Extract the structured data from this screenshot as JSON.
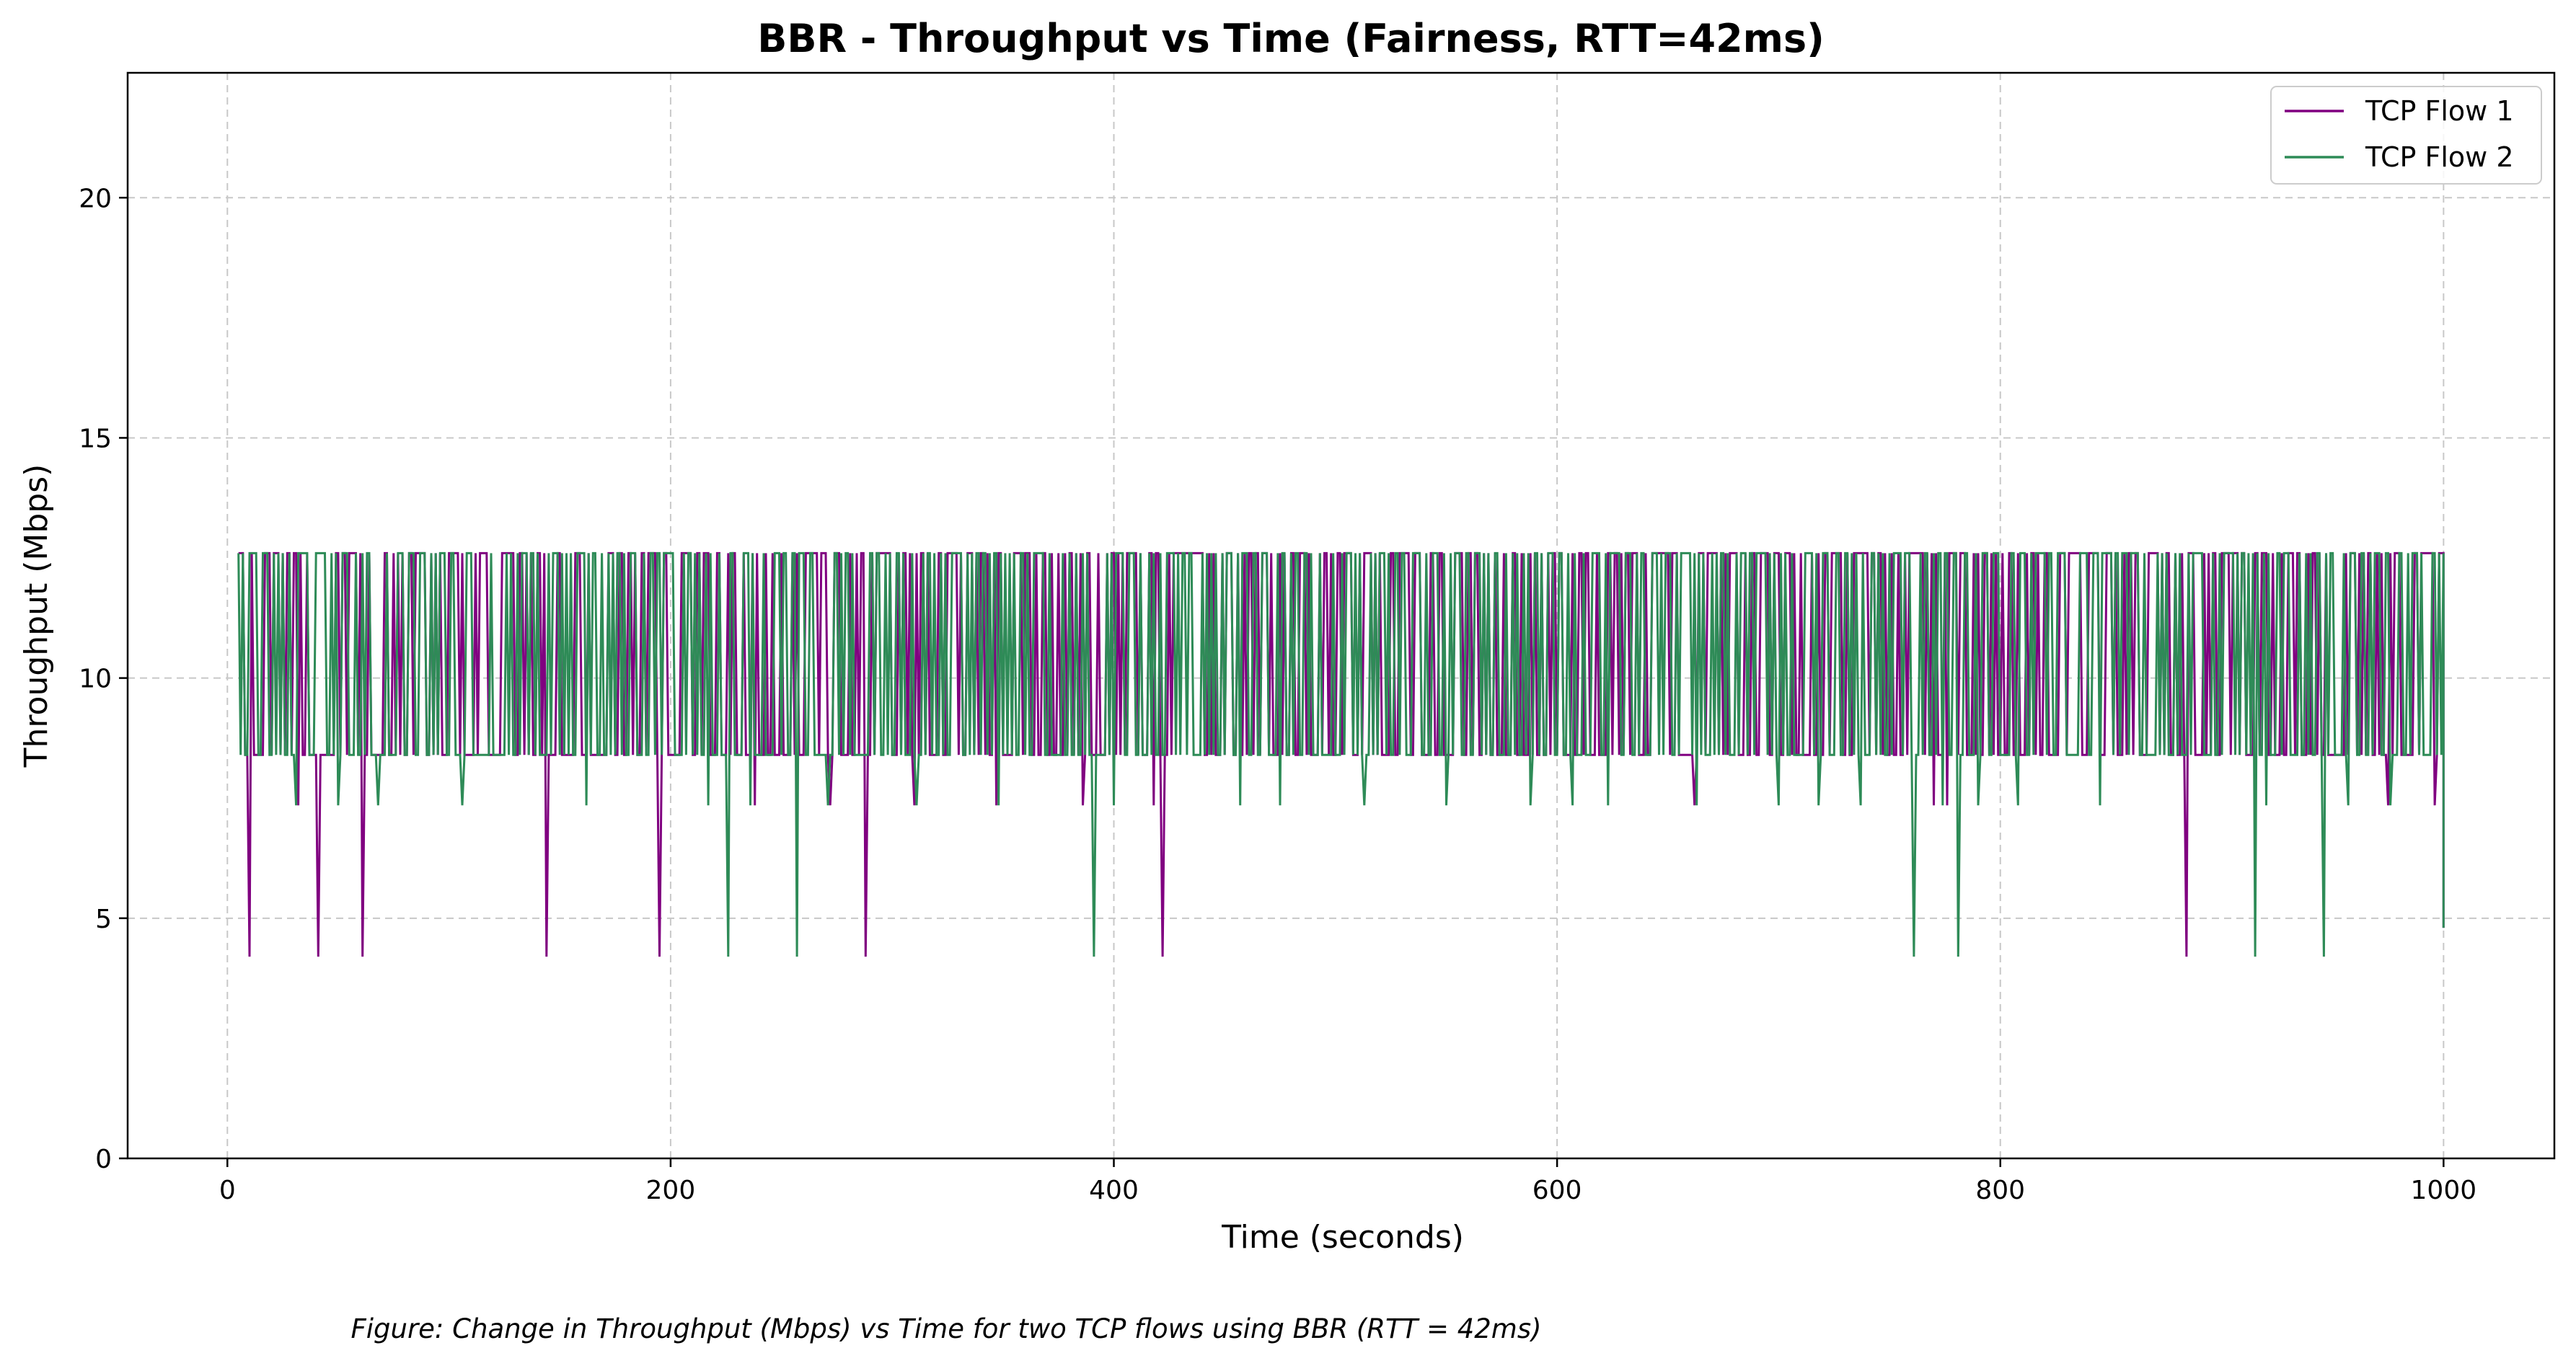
{
  "chart_data": {
    "type": "line",
    "title": "BBR - Throughput vs Time (Fairness, RTT=42ms)",
    "xlabel": "Time (seconds)",
    "ylabel": "Throughput (Mbps)",
    "caption": "Figure: Change in Throughput (Mbps) vs Time for two TCP flows using BBR (RTT = 42ms)",
    "xlim": [
      -45,
      1050
    ],
    "ylim": [
      0,
      22.6
    ],
    "xticks": [
      0,
      200,
      400,
      600,
      800,
      1000
    ],
    "yticks": [
      0,
      5,
      10,
      15,
      20
    ],
    "grid": true,
    "legend_position": "top-right",
    "x_start": 5,
    "x_end": 1000,
    "x_step": 1,
    "levels_mbps": [
      12.6,
      8.4,
      7.35,
      4.2
    ],
    "series": [
      {
        "name": "TCP Flow 1",
        "color": "#800080",
        "dips_7_35": [
          32,
          238,
          272,
          310,
          347,
          386,
          418,
          662,
          770,
          776,
          975,
          996
        ],
        "dips_4_2": [
          10,
          41,
          61,
          144,
          195,
          288,
          422,
          884
        ],
        "dips_8_4": [
          457,
          476,
          512,
          550,
          587,
          606,
          622
        ],
        "end_value": 4.8
      },
      {
        "name": "TCP Flow 2",
        "color": "#2e8b57",
        "dips_7_35": [
          31,
          50,
          68,
          106,
          162,
          217,
          236,
          271,
          311,
          348,
          400,
          457,
          475,
          513,
          550,
          588,
          607,
          623,
          663,
          700,
          718,
          737,
          774,
          790,
          808,
          845,
          920,
          957,
          976
        ],
        "dips_4_2": [
          226,
          257,
          391,
          761,
          781,
          915,
          946
        ],
        "end_value": 4.8
      }
    ]
  }
}
